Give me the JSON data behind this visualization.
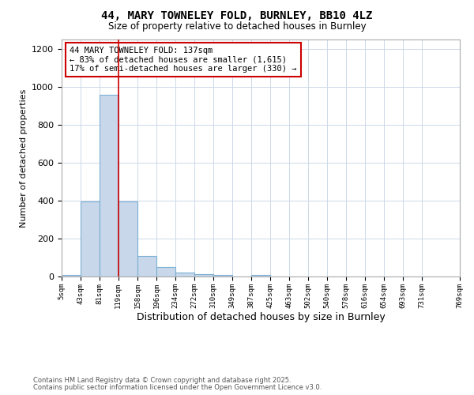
{
  "title_line1": "44, MARY TOWNELEY FOLD, BURNLEY, BB10 4LZ",
  "title_line2": "Size of property relative to detached houses in Burnley",
  "xlabel": "Distribution of detached houses by size in Burnley",
  "ylabel": "Number of detached properties",
  "bar_left_edges": [
    5,
    43,
    81,
    119,
    158,
    196,
    234,
    272,
    310,
    349,
    387,
    425,
    463,
    502,
    540,
    578,
    616,
    654,
    693,
    731
  ],
  "bar_heights": [
    10,
    395,
    960,
    395,
    110,
    48,
    20,
    12,
    10,
    0,
    10,
    0,
    0,
    0,
    0,
    0,
    0,
    0,
    0,
    0
  ],
  "bin_width": 38,
  "bar_color": "#c8d8ea",
  "bar_edge_color": "#7bafd4",
  "grid_color": "#ccd9e8",
  "vline_x": 119,
  "vline_color": "#cc0000",
  "annotation_box_text": "44 MARY TOWNELEY FOLD: 137sqm\n← 83% of detached houses are smaller (1,615)\n17% of semi-detached houses are larger (330) →",
  "annotation_box_color": "#cc0000",
  "annotation_box_fill": "#ffffff",
  "ylim": [
    0,
    1250
  ],
  "yticks": [
    0,
    200,
    400,
    600,
    800,
    1000,
    1200
  ],
  "tick_labels": [
    "5sqm",
    "43sqm",
    "81sqm",
    "119sqm",
    "158sqm",
    "196sqm",
    "234sqm",
    "272sqm",
    "310sqm",
    "349sqm",
    "387sqm",
    "425sqm",
    "463sqm",
    "502sqm",
    "540sqm",
    "578sqm",
    "616sqm",
    "654sqm",
    "693sqm",
    "731sqm",
    "769sqm"
  ],
  "footer_text1": "Contains HM Land Registry data © Crown copyright and database right 2025.",
  "footer_text2": "Contains public sector information licensed under the Open Government Licence v3.0.",
  "background_color": "#ffffff",
  "plot_bg_color": "#ffffff"
}
